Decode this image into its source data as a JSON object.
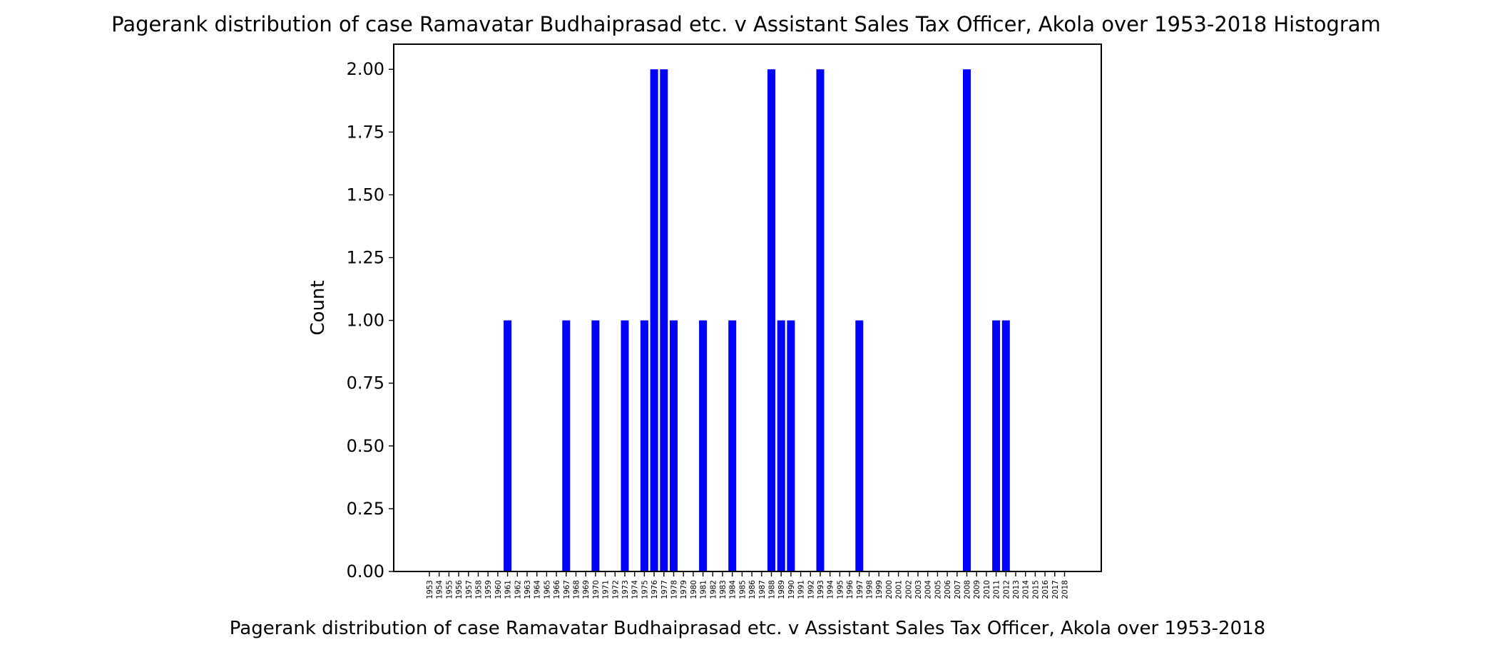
{
  "chart_data": {
    "type": "bar",
    "title": "Pagerank distribution of case Ramavatar Budhaiprasad etc. v Assistant Sales Tax Officer, Akola over 1953-2018 Histogram",
    "xlabel": "Pagerank distribution of case Ramavatar Budhaiprasad etc. v Assistant Sales Tax Officer, Akola over 1953-2018",
    "ylabel": "Count",
    "ylim": [
      0,
      2.1
    ],
    "yticks": [
      "0.00",
      "0.25",
      "0.50",
      "0.75",
      "1.00",
      "1.25",
      "1.50",
      "1.75",
      "2.00"
    ],
    "categories": [
      "1953",
      "1954",
      "1955",
      "1956",
      "1957",
      "1958",
      "1959",
      "1960",
      "1961",
      "1962",
      "1963",
      "1964",
      "1965",
      "1966",
      "1967",
      "1968",
      "1969",
      "1970",
      "1971",
      "1972",
      "1973",
      "1974",
      "1975",
      "1976",
      "1977",
      "1978",
      "1979",
      "1980",
      "1981",
      "1982",
      "1983",
      "1984",
      "1985",
      "1986",
      "1987",
      "1988",
      "1989",
      "1990",
      "1991",
      "1992",
      "1993",
      "1994",
      "1995",
      "1996",
      "1997",
      "1998",
      "1999",
      "2000",
      "2001",
      "2002",
      "2003",
      "2004",
      "2005",
      "2006",
      "2007",
      "2008",
      "2009",
      "2010",
      "2011",
      "2012",
      "2013",
      "2014",
      "2015",
      "2016",
      "2017",
      "2018"
    ],
    "values": [
      0,
      0,
      0,
      0,
      0,
      0,
      0,
      0,
      1,
      0,
      0,
      0,
      0,
      0,
      1,
      0,
      0,
      1,
      0,
      0,
      1,
      0,
      1,
      2,
      2,
      1,
      0,
      0,
      1,
      0,
      0,
      1,
      0,
      0,
      0,
      2,
      1,
      1,
      0,
      0,
      2,
      0,
      0,
      0,
      1,
      0,
      0,
      0,
      0,
      0,
      0,
      0,
      0,
      0,
      0,
      2,
      0,
      0,
      1,
      1,
      0,
      0,
      0,
      0,
      0,
      0
    ],
    "bar_color": "#0000ff",
    "grid": false,
    "legend": "none"
  }
}
